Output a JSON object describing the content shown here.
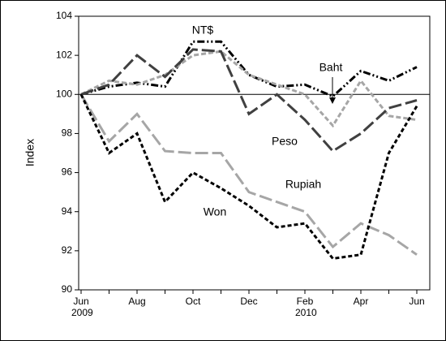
{
  "chart_data": {
    "type": "line",
    "y_label": "Index",
    "categories": [
      "Jun",
      null,
      "Aug",
      null,
      "Oct",
      null,
      "Dec",
      null,
      "Feb",
      null,
      "Apr",
      null,
      "Jun"
    ],
    "year_labels": [
      {
        "index": 0,
        "label": "2009"
      },
      {
        "index": 8,
        "label": "2010"
      }
    ],
    "ylim": [
      90,
      104
    ],
    "yticks": [
      90,
      92,
      94,
      96,
      98,
      100,
      102,
      104
    ],
    "reference_line": 100,
    "series": [
      {
        "name": "NT$",
        "color": "#000000",
        "dash": "9,3,2,3,2,3",
        "values": [
          100,
          100.4,
          100.6,
          100.4,
          102.7,
          102.7,
          101,
          100.4,
          100.5,
          99.9,
          101.2,
          100.7,
          101.4
        ]
      },
      {
        "name": "Baht",
        "color": "#a6a6a6",
        "dash": "6,3",
        "values": [
          100,
          100.7,
          100.5,
          101,
          102,
          102.2,
          101,
          100.5,
          100,
          98.4,
          100.7,
          98.9,
          98.7
        ]
      },
      {
        "name": "Peso",
        "color": "#404040",
        "dash": "16,5",
        "values": [
          100,
          100.5,
          102,
          100.9,
          102.3,
          102.2,
          99,
          100,
          98.7,
          97.1,
          98,
          99.3,
          99.7
        ]
      },
      {
        "name": "Rupiah",
        "color": "#a6a6a6",
        "dash": "16,5",
        "values": [
          100,
          97.6,
          99,
          97.1,
          97,
          97,
          95,
          94.5,
          94,
          92.2,
          93.4,
          92.8,
          91.8
        ]
      },
      {
        "name": "Won",
        "color": "#000000",
        "dash": "5,3",
        "values": [
          100,
          97,
          98,
          94.5,
          96,
          95.2,
          94.3,
          93.2,
          93.4,
          91.6,
          91.8,
          97,
          99.4
        ]
      }
    ]
  }
}
